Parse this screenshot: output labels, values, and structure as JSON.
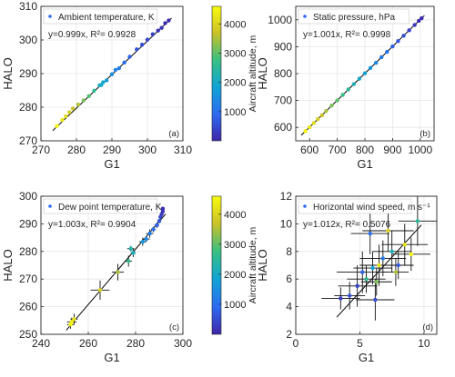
{
  "colorbar": {
    "label": "Aircraft altitude, m",
    "ticks": [
      1000,
      2000,
      3000,
      4000
    ],
    "range": [
      0,
      4600
    ]
  },
  "chart_data": [
    {
      "type": "scatter",
      "panel_label": "(a)",
      "legend": "Ambient temperature, K",
      "fit_text": "y=0.999x, R²= 0.9928",
      "xlabel": "G1",
      "ylabel": "HALO",
      "xlim": [
        270,
        310
      ],
      "ylim": [
        270,
        310
      ],
      "xticks": [
        270,
        280,
        290,
        300,
        310
      ],
      "yticks": [
        270,
        280,
        290,
        300,
        310
      ],
      "grid": true,
      "fit_slope": 0.999,
      "has_colorbar": true,
      "points": [
        {
          "x": 274.5,
          "y": 274.4,
          "alt": 4500
        },
        {
          "x": 276.0,
          "y": 276.2,
          "alt": 4300
        },
        {
          "x": 277.0,
          "y": 277.3,
          "alt": 4100
        },
        {
          "x": 278.0,
          "y": 278.5,
          "alt": 3900
        },
        {
          "x": 279.0,
          "y": 279.6,
          "alt": 3700
        },
        {
          "x": 280.5,
          "y": 280.8,
          "alt": 3500
        },
        {
          "x": 282.0,
          "y": 282.0,
          "alt": 3200
        },
        {
          "x": 283.5,
          "y": 283.3,
          "alt": 2900
        },
        {
          "x": 285.0,
          "y": 284.9,
          "alt": 2600
        },
        {
          "x": 286.5,
          "y": 286.5,
          "alt": 2200
        },
        {
          "x": 287.0,
          "y": 286.6,
          "alt": 2000
        },
        {
          "x": 287.5,
          "y": 287.4,
          "alt": 1900
        },
        {
          "x": 288.5,
          "y": 288.0,
          "alt": 1700
        },
        {
          "x": 290.0,
          "y": 289.8,
          "alt": 1500
        },
        {
          "x": 291.0,
          "y": 291.1,
          "alt": 1300
        },
        {
          "x": 292.0,
          "y": 291.6,
          "alt": 1200
        },
        {
          "x": 293.5,
          "y": 293.3,
          "alt": 1000
        },
        {
          "x": 295.0,
          "y": 295.0,
          "alt": 800
        },
        {
          "x": 297.0,
          "y": 297.2,
          "alt": 600
        },
        {
          "x": 298.5,
          "y": 298.6,
          "alt": 500
        },
        {
          "x": 300.0,
          "y": 300.1,
          "alt": 400
        },
        {
          "x": 301.5,
          "y": 301.7,
          "alt": 300
        },
        {
          "x": 303.0,
          "y": 302.8,
          "alt": 200
        },
        {
          "x": 304.0,
          "y": 303.6,
          "alt": 150
        },
        {
          "x": 305.0,
          "y": 305.0,
          "alt": 100
        },
        {
          "x": 306.0,
          "y": 305.8,
          "alt": 80
        }
      ]
    },
    {
      "type": "scatter",
      "panel_label": "(b)",
      "legend": "Static pressure, hPa",
      "fit_text": "y=1.001x, R²= 0.9998",
      "xlabel": "G1",
      "ylabel": "HALO",
      "xlim": [
        550,
        1050
      ],
      "ylim": [
        550,
        1050
      ],
      "xticks": [
        600,
        700,
        800,
        900,
        1000
      ],
      "yticks": [
        600,
        700,
        800,
        900,
        1000
      ],
      "grid": true,
      "fit_slope": 1.001,
      "has_colorbar": false,
      "points": [
        {
          "x": 585,
          "y": 586,
          "alt": 4500
        },
        {
          "x": 600,
          "y": 601,
          "alt": 4300
        },
        {
          "x": 615,
          "y": 616,
          "alt": 4100
        },
        {
          "x": 630,
          "y": 631,
          "alt": 3900
        },
        {
          "x": 645,
          "y": 645,
          "alt": 3700
        },
        {
          "x": 660,
          "y": 661,
          "alt": 3500
        },
        {
          "x": 680,
          "y": 681,
          "alt": 3200
        },
        {
          "x": 700,
          "y": 700,
          "alt": 3000
        },
        {
          "x": 720,
          "y": 721,
          "alt": 2700
        },
        {
          "x": 740,
          "y": 741,
          "alt": 2500
        },
        {
          "x": 760,
          "y": 761,
          "alt": 2200
        },
        {
          "x": 780,
          "y": 781,
          "alt": 2000
        },
        {
          "x": 800,
          "y": 801,
          "alt": 1800
        },
        {
          "x": 820,
          "y": 821,
          "alt": 1600
        },
        {
          "x": 840,
          "y": 840,
          "alt": 1400
        },
        {
          "x": 860,
          "y": 861,
          "alt": 1200
        },
        {
          "x": 880,
          "y": 881,
          "alt": 1000
        },
        {
          "x": 900,
          "y": 901,
          "alt": 800
        },
        {
          "x": 920,
          "y": 921,
          "alt": 650
        },
        {
          "x": 940,
          "y": 941,
          "alt": 500
        },
        {
          "x": 960,
          "y": 961,
          "alt": 350
        },
        {
          "x": 980,
          "y": 981,
          "alt": 200
        },
        {
          "x": 995,
          "y": 996,
          "alt": 100
        },
        {
          "x": 1005,
          "y": 1006,
          "alt": 50
        }
      ]
    },
    {
      "type": "scatter",
      "panel_label": "(c)",
      "legend": "Dew point temperature, K",
      "fit_text": "y=1.003x, R²= 0.9904",
      "xlabel": "G1",
      "ylabel": "HALO",
      "xlim": [
        240,
        300
      ],
      "ylim": [
        250,
        300
      ],
      "xticks": [
        240,
        260,
        280,
        300
      ],
      "yticks": [
        250,
        260,
        270,
        280,
        290,
        300
      ],
      "grid": true,
      "fit_slope": 1.003,
      "has_colorbar": true,
      "points": [
        {
          "x": 253.0,
          "y": 254.5,
          "alt": 4400,
          "xerr": 2.0,
          "yerr": 1.5
        },
        {
          "x": 254.0,
          "y": 255.5,
          "alt": 4200,
          "xerr": 1.5,
          "yerr": 2.0
        },
        {
          "x": 252.5,
          "y": 253.5,
          "alt": 4500,
          "xerr": 1.5,
          "yerr": 1.5
        },
        {
          "x": 265.0,
          "y": 266.0,
          "alt": 3900,
          "xerr": 4.0,
          "yerr": 3.5
        },
        {
          "x": 272.5,
          "y": 272.5,
          "alt": 3500,
          "xerr": 2.5,
          "yerr": 3.0
        },
        {
          "x": 277.0,
          "y": 276.5,
          "alt": 2600,
          "xerr": 1.5,
          "yerr": 2.0
        },
        {
          "x": 278.0,
          "y": 281.0,
          "alt": 2300,
          "xerr": 1.5,
          "yerr": 1.0
        },
        {
          "x": 279.0,
          "y": 279.5,
          "alt": 2100,
          "xerr": 1.0,
          "yerr": 1.5
        },
        {
          "x": 283.0,
          "y": 283.5,
          "alt": 1600,
          "xerr": 1.5,
          "yerr": 1.5
        },
        {
          "x": 284.5,
          "y": 284.5,
          "alt": 1400,
          "xerr": 1.5,
          "yerr": 1.0
        },
        {
          "x": 286.0,
          "y": 286.5,
          "alt": 1200,
          "xerr": 1.5,
          "yerr": 1.5
        },
        {
          "x": 287.5,
          "y": 288.0,
          "alt": 1000,
          "xerr": 1.0,
          "yerr": 1.0
        },
        {
          "x": 289.0,
          "y": 289.5,
          "alt": 800,
          "xerr": 1.0,
          "yerr": 1.0
        },
        {
          "x": 290.0,
          "y": 291.0,
          "alt": 600,
          "xerr": 0.8,
          "yerr": 0.8
        },
        {
          "x": 290.5,
          "y": 292.5,
          "alt": 450,
          "xerr": 0.8,
          "yerr": 0.8
        },
        {
          "x": 291.0,
          "y": 293.5,
          "alt": 300,
          "xerr": 0.6,
          "yerr": 0.6
        },
        {
          "x": 291.5,
          "y": 294.5,
          "alt": 200,
          "xerr": 0.6,
          "yerr": 0.6
        },
        {
          "x": 291.5,
          "y": 295.5,
          "alt": 100,
          "xerr": 0.5,
          "yerr": 0.5
        }
      ]
    },
    {
      "type": "scatter",
      "panel_label": "(d)",
      "legend": "Horizontal wind speed, m s⁻¹",
      "fit_text": "y=1.012x, R²= 0.5076",
      "xlabel": "G1",
      "ylabel": "HALO",
      "xlim": [
        0,
        11
      ],
      "ylim": [
        2,
        12
      ],
      "xticks": [
        0,
        5,
        10
      ],
      "yticks": [
        2,
        4,
        6,
        8,
        10,
        12
      ],
      "grid": true,
      "fit_slope": 1.012,
      "has_colorbar": false,
      "points": [
        {
          "x": 3.5,
          "y": 4.6,
          "alt": 300,
          "xerr": 1.5,
          "yerr": 0.8
        },
        {
          "x": 4.2,
          "y": 4.8,
          "alt": 600,
          "xerr": 1.2,
          "yerr": 1.0
        },
        {
          "x": 4.8,
          "y": 5.5,
          "alt": 400,
          "xerr": 1.5,
          "yerr": 1.5
        },
        {
          "x": 5.2,
          "y": 6.5,
          "alt": 800,
          "xerr": 2.0,
          "yerr": 1.5
        },
        {
          "x": 5.5,
          "y": 6.0,
          "alt": 2600,
          "xerr": 1.5,
          "yerr": 1.0
        },
        {
          "x": 6.0,
          "y": 6.8,
          "alt": 1800,
          "xerr": 1.5,
          "yerr": 1.2
        },
        {
          "x": 6.3,
          "y": 5.8,
          "alt": 3200,
          "xerr": 1.2,
          "yerr": 1.0
        },
        {
          "x": 6.5,
          "y": 7.0,
          "alt": 4300,
          "xerr": 1.5,
          "yerr": 1.5
        },
        {
          "x": 6.8,
          "y": 7.5,
          "alt": 1200,
          "xerr": 1.8,
          "yerr": 1.3
        },
        {
          "x": 7.2,
          "y": 9.5,
          "alt": 4000,
          "xerr": 2.0,
          "yerr": 1.5
        },
        {
          "x": 7.5,
          "y": 8.0,
          "alt": 2200,
          "xerr": 1.5,
          "yerr": 1.5
        },
        {
          "x": 8.0,
          "y": 7.0,
          "alt": 700,
          "xerr": 1.2,
          "yerr": 1.0
        },
        {
          "x": 8.5,
          "y": 8.5,
          "alt": 4200,
          "xerr": 1.8,
          "yerr": 1.5
        },
        {
          "x": 9.0,
          "y": 7.8,
          "alt": 4500,
          "xerr": 1.5,
          "yerr": 1.2
        },
        {
          "x": 9.5,
          "y": 10.2,
          "alt": 2500,
          "xerr": 1.5,
          "yerr": 1.8
        },
        {
          "x": 5.8,
          "y": 9.3,
          "alt": 1000,
          "xerr": 1.5,
          "yerr": 1.5
        },
        {
          "x": 7.8,
          "y": 6.5,
          "alt": 3500,
          "xerr": 1.0,
          "yerr": 1.0
        },
        {
          "x": 6.2,
          "y": 4.5,
          "alt": 500,
          "xerr": 1.5,
          "yerr": 1.5
        }
      ]
    }
  ]
}
